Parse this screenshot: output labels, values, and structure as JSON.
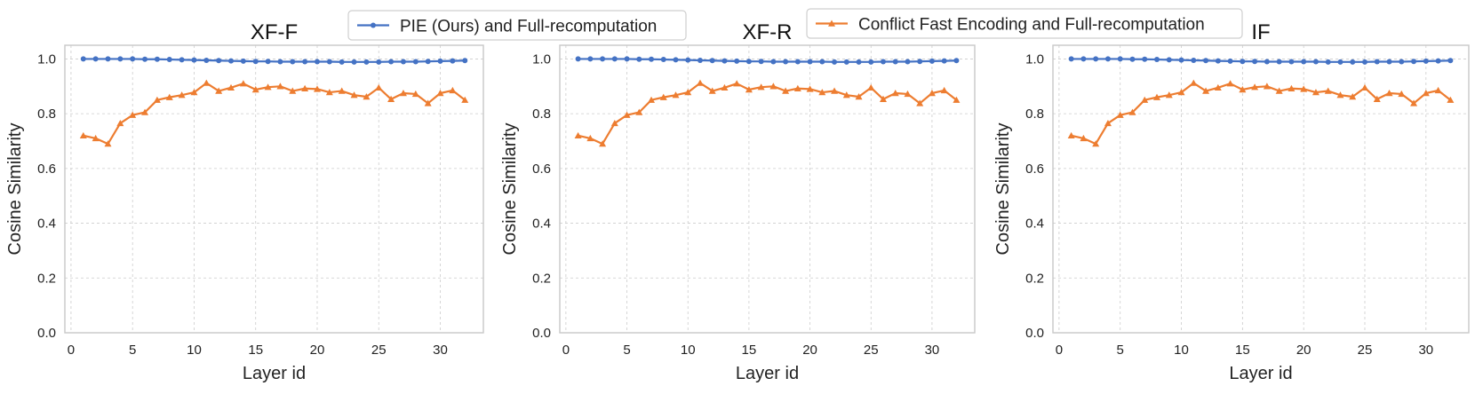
{
  "legend": {
    "items": [
      {
        "label": "PIE (Ours) and Full-recomputation",
        "color": "#4472c4",
        "marker": "circle"
      },
      {
        "label": "Conflict Fast Encoding and Full-recomputation",
        "color": "#ed7d31",
        "marker": "triangle"
      }
    ]
  },
  "chart_data": [
    {
      "type": "line",
      "title": "XF-F",
      "xlabel": "Layer id",
      "ylabel": "Cosine Similarity",
      "xlim": [
        -0.5,
        33.5
      ],
      "ylim": [
        0,
        1.05
      ],
      "xticks": [
        0,
        5,
        10,
        15,
        20,
        25,
        30
      ],
      "yticks": [
        0.0,
        0.2,
        0.4,
        0.6,
        0.8,
        1.0
      ],
      "grid": true,
      "x": [
        1,
        2,
        3,
        4,
        5,
        6,
        7,
        8,
        9,
        10,
        11,
        12,
        13,
        14,
        15,
        16,
        17,
        18,
        19,
        20,
        21,
        22,
        23,
        24,
        25,
        26,
        27,
        28,
        29,
        30,
        31,
        32
      ],
      "series": [
        {
          "name": "PIE (Ours) and Full-recomputation",
          "color": "#4472c4",
          "marker": "circle",
          "values": [
            1.0,
            1.0,
            1.0,
            1.0,
            1.0,
            0.999,
            0.999,
            0.998,
            0.997,
            0.996,
            0.995,
            0.994,
            0.993,
            0.992,
            0.991,
            0.991,
            0.99,
            0.99,
            0.99,
            0.99,
            0.99,
            0.989,
            0.989,
            0.989,
            0.989,
            0.99,
            0.99,
            0.99,
            0.991,
            0.992,
            0.993,
            0.994
          ]
        },
        {
          "name": "Conflict Fast Encoding and Full-recomputation",
          "color": "#ed7d31",
          "marker": "triangle",
          "values": [
            0.72,
            0.71,
            0.69,
            0.765,
            0.795,
            0.805,
            0.85,
            0.86,
            0.868,
            0.878,
            0.912,
            0.883,
            0.895,
            0.91,
            0.888,
            0.897,
            0.9,
            0.883,
            0.892,
            0.89,
            0.878,
            0.883,
            0.868,
            0.862,
            0.895,
            0.853,
            0.875,
            0.872,
            0.838,
            0.875,
            0.885,
            0.85
          ]
        }
      ]
    },
    {
      "type": "line",
      "title": "XF-R",
      "xlabel": "Layer id",
      "ylabel": "Cosine Similarity",
      "xlim": [
        -0.5,
        33.5
      ],
      "ylim": [
        0,
        1.05
      ],
      "xticks": [
        0,
        5,
        10,
        15,
        20,
        25,
        30
      ],
      "yticks": [
        0.0,
        0.2,
        0.4,
        0.6,
        0.8,
        1.0
      ],
      "grid": true,
      "x": [
        1,
        2,
        3,
        4,
        5,
        6,
        7,
        8,
        9,
        10,
        11,
        12,
        13,
        14,
        15,
        16,
        17,
        18,
        19,
        20,
        21,
        22,
        23,
        24,
        25,
        26,
        27,
        28,
        29,
        30,
        31,
        32
      ],
      "series": [
        {
          "name": "PIE (Ours) and Full-recomputation",
          "color": "#4472c4",
          "marker": "circle",
          "values": [
            1.0,
            1.0,
            1.0,
            1.0,
            1.0,
            0.999,
            0.999,
            0.998,
            0.997,
            0.996,
            0.995,
            0.994,
            0.993,
            0.992,
            0.991,
            0.991,
            0.99,
            0.99,
            0.99,
            0.99,
            0.99,
            0.989,
            0.989,
            0.989,
            0.989,
            0.99,
            0.99,
            0.99,
            0.991,
            0.992,
            0.993,
            0.994
          ]
        },
        {
          "name": "Conflict Fast Encoding and Full-recomputation",
          "color": "#ed7d31",
          "marker": "triangle",
          "values": [
            0.72,
            0.71,
            0.69,
            0.765,
            0.795,
            0.805,
            0.85,
            0.86,
            0.868,
            0.878,
            0.912,
            0.883,
            0.895,
            0.91,
            0.888,
            0.897,
            0.9,
            0.883,
            0.892,
            0.89,
            0.878,
            0.883,
            0.868,
            0.862,
            0.895,
            0.853,
            0.875,
            0.872,
            0.838,
            0.875,
            0.885,
            0.85
          ]
        }
      ]
    },
    {
      "type": "line",
      "title": "IF",
      "xlabel": "Layer id",
      "ylabel": "Cosine Similarity",
      "xlim": [
        -0.5,
        33.5
      ],
      "ylim": [
        0,
        1.05
      ],
      "xticks": [
        0,
        5,
        10,
        15,
        20,
        25,
        30
      ],
      "yticks": [
        0.0,
        0.2,
        0.4,
        0.6,
        0.8,
        1.0
      ],
      "grid": true,
      "x": [
        1,
        2,
        3,
        4,
        5,
        6,
        7,
        8,
        9,
        10,
        11,
        12,
        13,
        14,
        15,
        16,
        17,
        18,
        19,
        20,
        21,
        22,
        23,
        24,
        25,
        26,
        27,
        28,
        29,
        30,
        31,
        32
      ],
      "series": [
        {
          "name": "PIE (Ours) and Full-recomputation",
          "color": "#4472c4",
          "marker": "circle",
          "values": [
            1.0,
            1.0,
            1.0,
            1.0,
            1.0,
            0.999,
            0.999,
            0.998,
            0.997,
            0.996,
            0.995,
            0.994,
            0.993,
            0.992,
            0.991,
            0.991,
            0.99,
            0.99,
            0.99,
            0.99,
            0.99,
            0.989,
            0.989,
            0.989,
            0.989,
            0.99,
            0.99,
            0.99,
            0.991,
            0.992,
            0.993,
            0.994
          ]
        },
        {
          "name": "Conflict Fast Encoding and Full-recomputation",
          "color": "#ed7d31",
          "marker": "triangle",
          "values": [
            0.72,
            0.71,
            0.69,
            0.765,
            0.795,
            0.805,
            0.85,
            0.86,
            0.868,
            0.878,
            0.912,
            0.883,
            0.895,
            0.91,
            0.888,
            0.897,
            0.9,
            0.883,
            0.892,
            0.89,
            0.878,
            0.883,
            0.868,
            0.862,
            0.895,
            0.853,
            0.875,
            0.872,
            0.838,
            0.875,
            0.885,
            0.85
          ]
        }
      ]
    }
  ]
}
